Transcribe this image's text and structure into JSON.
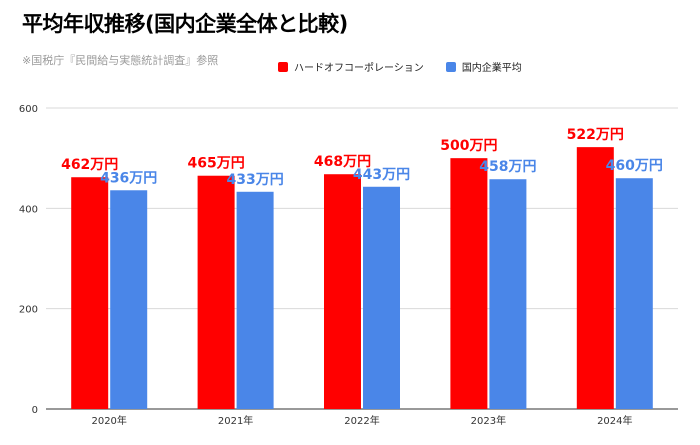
{
  "header": {
    "title": "平均年収推移(国内企業全体と比較)",
    "subtitle": "※国税庁『民間給与実態統計調査』参照"
  },
  "legend": [
    {
      "name": "ハードオフコーポレーション",
      "color": "#ff0000"
    },
    {
      "name": "国内企業平均",
      "color": "#4a86e8"
    }
  ],
  "chart_data": {
    "type": "bar",
    "categories": [
      "2020年",
      "2021年",
      "2022年",
      "2023年",
      "2024年"
    ],
    "series": [
      {
        "name": "ハードオフコーポレーション",
        "color": "#ff0000",
        "values": [
          462,
          465,
          468,
          500,
          522
        ],
        "labels": [
          "462万円",
          "465万円",
          "468万円",
          "500万円",
          "522万円"
        ]
      },
      {
        "name": "国内企業平均",
        "color": "#4a86e8",
        "values": [
          436,
          433,
          443,
          458,
          460
        ],
        "labels": [
          "436万円",
          "433万円",
          "443万円",
          "458万円",
          "460万円"
        ]
      }
    ],
    "ylim": [
      0,
      600
    ],
    "yticks": [
      0,
      200,
      400,
      600
    ],
    "grid": true,
    "legend_position": "top"
  }
}
